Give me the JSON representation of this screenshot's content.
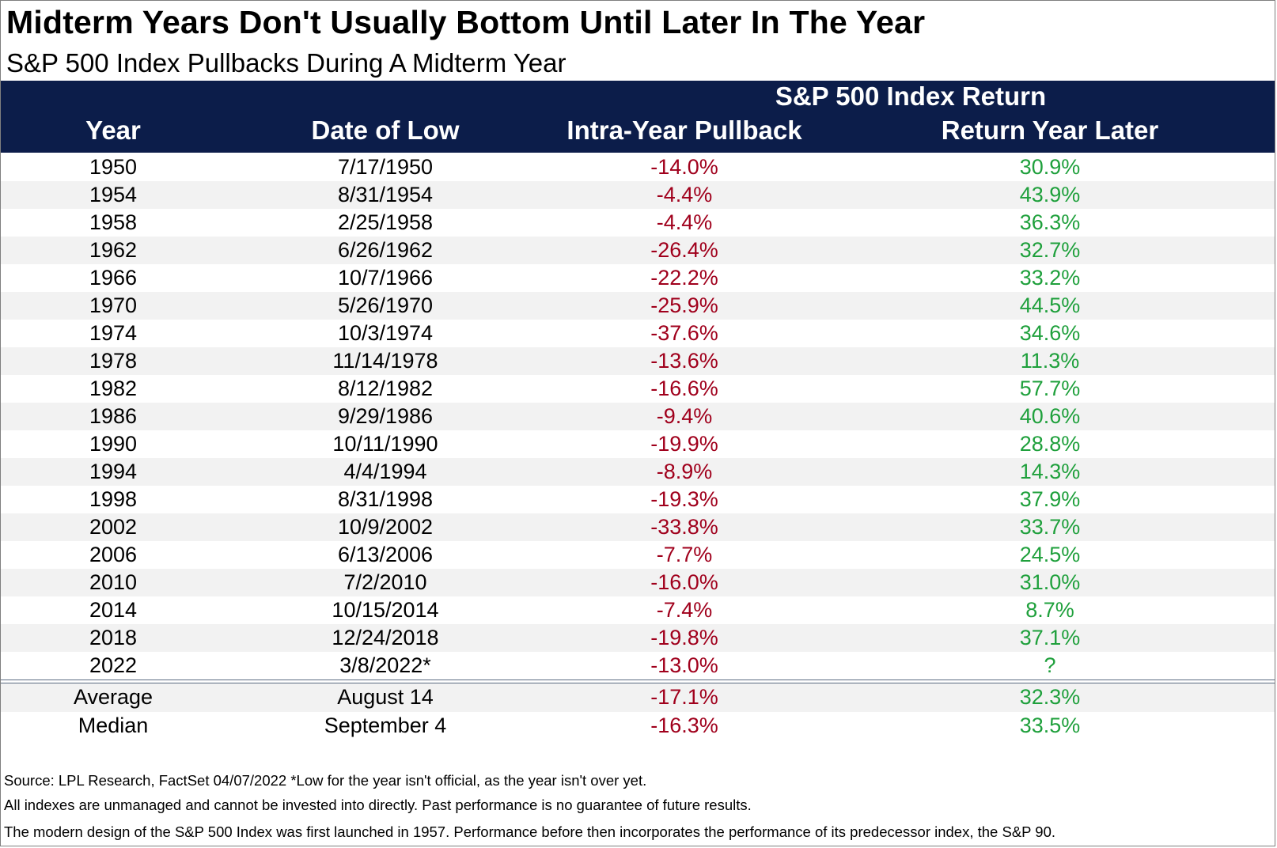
{
  "title": "Midterm Years Don't Usually Bottom Until Later In The Year",
  "subtitle": "S&P 500 Index Pullbacks During A Midterm Year",
  "colors": {
    "header_bg": "#0c1d4a",
    "negative": "#a0001c",
    "positive": "#1fa03c",
    "band": "#f2f2f2"
  },
  "chart_data": {
    "type": "table",
    "group_header": "S&P 500 Index Return",
    "columns": [
      "Year",
      "Date of Low",
      "Intra-Year Pullback",
      "Return Year Later"
    ],
    "rows": [
      [
        "1950",
        "7/17/1950",
        "-14.0%",
        "30.9%"
      ],
      [
        "1954",
        "8/31/1954",
        "-4.4%",
        "43.9%"
      ],
      [
        "1958",
        "2/25/1958",
        "-4.4%",
        "36.3%"
      ],
      [
        "1962",
        "6/26/1962",
        "-26.4%",
        "32.7%"
      ],
      [
        "1966",
        "10/7/1966",
        "-22.2%",
        "33.2%"
      ],
      [
        "1970",
        "5/26/1970",
        "-25.9%",
        "44.5%"
      ],
      [
        "1974",
        "10/3/1974",
        "-37.6%",
        "34.6%"
      ],
      [
        "1978",
        "11/14/1978",
        "-13.6%",
        "11.3%"
      ],
      [
        "1982",
        "8/12/1982",
        "-16.6%",
        "57.7%"
      ],
      [
        "1986",
        "9/29/1986",
        "-9.4%",
        "40.6%"
      ],
      [
        "1990",
        "10/11/1990",
        "-19.9%",
        "28.8%"
      ],
      [
        "1994",
        "4/4/1994",
        "-8.9%",
        "14.3%"
      ],
      [
        "1998",
        "8/31/1998",
        "-19.3%",
        "37.9%"
      ],
      [
        "2002",
        "10/9/2002",
        "-33.8%",
        "33.7%"
      ],
      [
        "2006",
        "6/13/2006",
        "-7.7%",
        "24.5%"
      ],
      [
        "2010",
        "7/2/2010",
        "-16.0%",
        "31.0%"
      ],
      [
        "2014",
        "10/15/2014",
        "-7.4%",
        "8.7%"
      ],
      [
        "2018",
        "12/24/2018",
        "-19.8%",
        "37.1%"
      ],
      [
        "2022",
        "3/8/2022*",
        "-13.0%",
        "?"
      ]
    ],
    "summary": [
      [
        "Average",
        "August 14",
        "-17.1%",
        "32.3%"
      ],
      [
        "Median",
        "September 4",
        "-16.3%",
        "33.5%"
      ]
    ]
  },
  "notes": [
    "Source: LPL Research, FactSet 04/07/2022   *Low for the year isn't official, as the year isn't over yet.",
    "All indexes are unmanaged and cannot be invested into directly. Past performance is no guarantee of future results.",
    "The modern design of the S&P 500 Index was first launched in 1957. Performance before then incorporates the performance of its predecessor index, the S&P 90."
  ]
}
